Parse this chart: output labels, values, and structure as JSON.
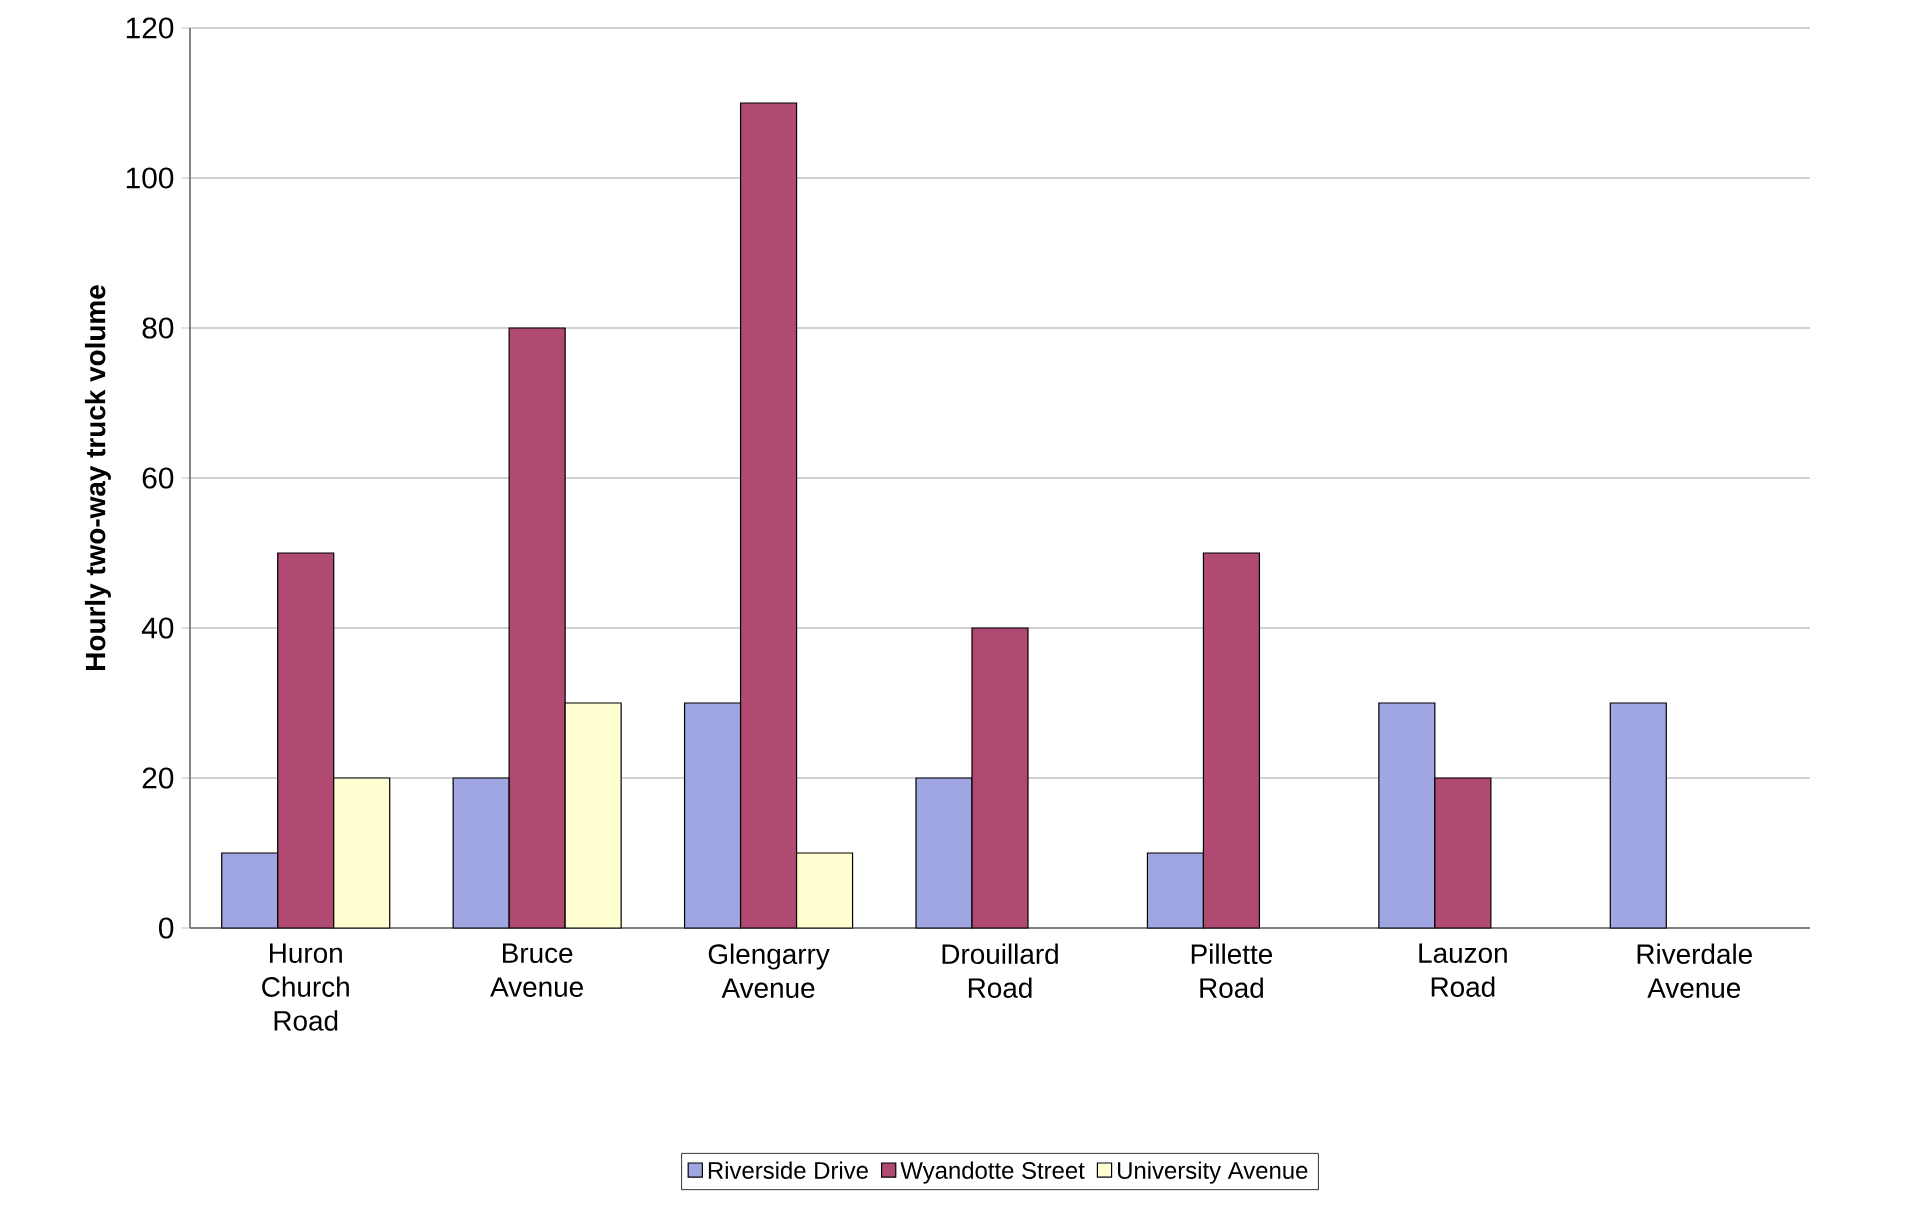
{
  "chart_data": {
    "type": "bar",
    "ylabel": "Hourly two-way truck volume",
    "categories": [
      "Huron Church Road",
      "Bruce Avenue",
      "Glengarry Avenue",
      "Drouillard Road",
      "Pillette Road",
      "Lauzon Road",
      "Riverdale Avenue"
    ],
    "series": [
      {
        "name": "Riverside Drive",
        "color": "#9fa6e2",
        "values": [
          10,
          20,
          30,
          20,
          10,
          30,
          30
        ]
      },
      {
        "name": "Wyandotte Street",
        "color": "#b14a72",
        "values": [
          50,
          80,
          110,
          40,
          50,
          20,
          null
        ]
      },
      {
        "name": "University Avenue",
        "color": "#ffffd2",
        "values": [
          20,
          30,
          10,
          null,
          null,
          null,
          null
        ]
      }
    ],
    "ylim": [
      0,
      120
    ],
    "yticks": [
      0,
      20,
      40,
      60,
      80,
      100,
      120
    ],
    "grid": "y",
    "legend": "bottom"
  }
}
